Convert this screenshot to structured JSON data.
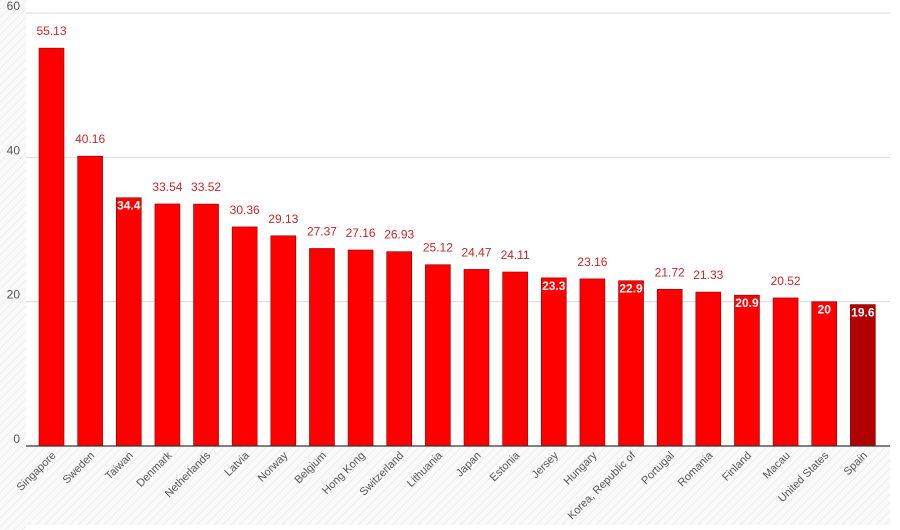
{
  "chart_data": {
    "type": "bar",
    "categories": [
      "Singapore",
      "Sweden",
      "Taiwan",
      "Denmark",
      "Netherlands",
      "Latvia",
      "Norway",
      "Belgium",
      "Hong Kong",
      "Switzerland",
      "Lithuania",
      "Japan",
      "Estonia",
      "Jersey",
      "Hungary",
      "Korea, Republic of",
      "Portugal",
      "Romania",
      "Finland",
      "Macau",
      "United States",
      "Spain"
    ],
    "values": [
      55.13,
      40.16,
      34.4,
      33.54,
      33.52,
      30.36,
      29.13,
      27.37,
      27.16,
      26.93,
      25.12,
      24.47,
      24.11,
      23.3,
      23.16,
      22.9,
      21.72,
      21.33,
      20.9,
      20.52,
      20,
      19.6
    ],
    "data_labels": [
      "55.13",
      "40.16",
      "34.4",
      "33.54",
      "33.52",
      "30.36",
      "29.13",
      "27.37",
      "27.16",
      "26.93",
      "25.12",
      "24.47",
      "24.11",
      "23.3",
      "23.16",
      "22.9",
      "21.72",
      "21.33",
      "20.9",
      "20.52",
      "20",
      "19.6"
    ],
    "inside_labels": [
      "Taiwan",
      "Jersey",
      "Korea, Republic of",
      "Finland",
      "United States",
      "Spain"
    ],
    "highlight_category": "Spain",
    "yticks": [
      "0",
      "20",
      "40",
      "60"
    ],
    "ylim": [
      0,
      60
    ],
    "grid": true,
    "title": "",
    "xlabel": "",
    "ylabel": "",
    "colors": {
      "bar": "#ff0000",
      "bar_highlight": "#b00000",
      "bar_stroke": "#8b0000",
      "label_outside": "#c62828",
      "gridline": "#d9d9d9",
      "axis": "#333333"
    }
  }
}
